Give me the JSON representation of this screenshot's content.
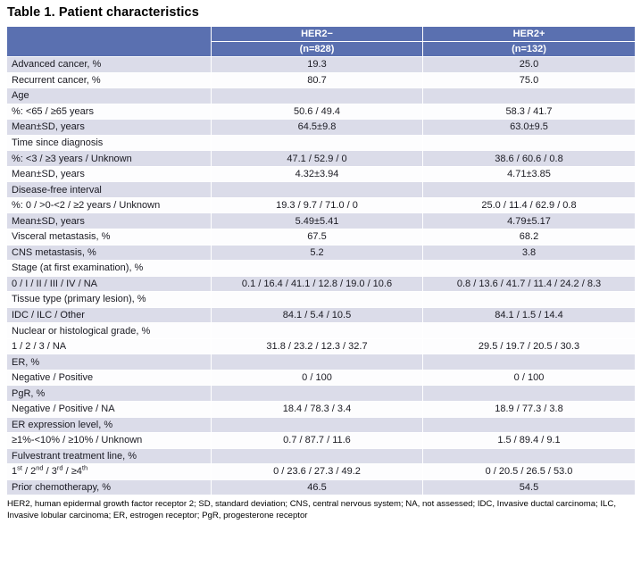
{
  "title": "Table 1. Patient characteristics",
  "table": {
    "columns": [
      {
        "group": "HER2−",
        "n": "(n=828)"
      },
      {
        "group": "HER2+",
        "n": "(n=132)"
      }
    ],
    "rows": [
      {
        "label": "Advanced cancer, %",
        "her2neg": "19.3",
        "her2pos": "25.0",
        "indent": false,
        "shaded": true,
        "sup": false
      },
      {
        "label": "Recurrent cancer, %",
        "her2neg": "80.7",
        "her2pos": "75.0",
        "indent": false,
        "shaded": false,
        "sup": false
      },
      {
        "label": "Age",
        "her2neg": "",
        "her2pos": "",
        "indent": false,
        "shaded": true,
        "sup": false
      },
      {
        "label": "%: <65 / ≥65 years",
        "her2neg": "50.6 / 49.4",
        "her2pos": "58.3 / 41.7",
        "indent": true,
        "shaded": false,
        "sup": false
      },
      {
        "label": "Mean±SD, years",
        "her2neg": "64.5±9.8",
        "her2pos": "63.0±9.5",
        "indent": true,
        "shaded": true,
        "sup": false
      },
      {
        "label": "Time since diagnosis",
        "her2neg": "",
        "her2pos": "",
        "indent": false,
        "shaded": false,
        "sup": false
      },
      {
        "label": "%: <3 / ≥3 years / Unknown",
        "her2neg": "47.1 / 52.9 / 0",
        "her2pos": "38.6 / 60.6 / 0.8",
        "indent": true,
        "shaded": true,
        "sup": false
      },
      {
        "label": "Mean±SD, years",
        "her2neg": "4.32±3.94",
        "her2pos": "4.71±3.85",
        "indent": true,
        "shaded": false,
        "sup": false
      },
      {
        "label": "Disease-free interval",
        "her2neg": "",
        "her2pos": "",
        "indent": false,
        "shaded": true,
        "sup": false
      },
      {
        "label": "%: 0 / >0-<2 / ≥2 years / Unknown",
        "her2neg": "19.3 / 9.7 / 71.0 / 0",
        "her2pos": "25.0 / 11.4 / 62.9 / 0.8",
        "indent": true,
        "shaded": false,
        "sup": false
      },
      {
        "label": "Mean±SD, years",
        "her2neg": "5.49±5.41",
        "her2pos": "4.79±5.17",
        "indent": true,
        "shaded": true,
        "sup": false
      },
      {
        "label": "Visceral metastasis, %",
        "her2neg": "67.5",
        "her2pos": "68.2",
        "indent": false,
        "shaded": false,
        "sup": false
      },
      {
        "label": "CNS metastasis, %",
        "her2neg": "5.2",
        "her2pos": "3.8",
        "indent": false,
        "shaded": true,
        "sup": false
      },
      {
        "label": "Stage (at first examination), %",
        "her2neg": "",
        "her2pos": "",
        "indent": false,
        "shaded": false,
        "sup": false
      },
      {
        "label": "0 / I / II / III / IV / NA",
        "her2neg": "0.1 / 16.4 / 41.1 / 12.8 / 19.0 / 10.6",
        "her2pos": "0.8 / 13.6 / 41.7 / 11.4 / 24.2 / 8.3",
        "indent": true,
        "shaded": true,
        "sup": false
      },
      {
        "label": "Tissue type (primary lesion), %",
        "her2neg": "",
        "her2pos": "",
        "indent": false,
        "shaded": false,
        "sup": false
      },
      {
        "label": "IDC / ILC / Other",
        "her2neg": "84.1 / 5.4 / 10.5",
        "her2pos": "84.1 / 1.5 / 14.4",
        "indent": true,
        "shaded": true,
        "sup": false
      },
      {
        "label": "Nuclear or histological grade, %",
        "her2neg": "",
        "her2pos": "",
        "indent": false,
        "shaded": false,
        "sup": false
      },
      {
        "label": "1 / 2 / 3 / NA",
        "her2neg": "31.8 / 23.2 / 12.3 / 32.7",
        "her2pos": "29.5 / 19.7 / 20.5 / 30.3",
        "indent": true,
        "shaded": false,
        "sup": false
      },
      {
        "label": "ER, %",
        "her2neg": "",
        "her2pos": "",
        "indent": false,
        "shaded": true,
        "sup": false
      },
      {
        "label": "Negative / Positive",
        "her2neg": "0 / 100",
        "her2pos": "0 / 100",
        "indent": true,
        "shaded": false,
        "sup": false
      },
      {
        "label": "PgR, %",
        "her2neg": "",
        "her2pos": "",
        "indent": false,
        "shaded": true,
        "sup": false
      },
      {
        "label": "Negative / Positive / NA",
        "her2neg": "18.4 / 78.3 / 3.4",
        "her2pos": "18.9 / 77.3 / 3.8",
        "indent": true,
        "shaded": false,
        "sup": false
      },
      {
        "label": "ER expression level, %",
        "her2neg": "",
        "her2pos": "",
        "indent": false,
        "shaded": true,
        "sup": false
      },
      {
        "label": "≥1%-<10% / ≥10% / Unknown",
        "her2neg": "0.7 / 87.7 / 11.6",
        "her2pos": "1.5 / 89.4 / 9.1",
        "indent": true,
        "shaded": false,
        "sup": false
      },
      {
        "label": "Fulvestrant treatment line, %",
        "her2neg": "",
        "her2pos": "",
        "indent": false,
        "shaded": true,
        "sup": false
      },
      {
        "label": "1st / 2nd / 3rd / ≥4th",
        "her2neg": "0 / 23.6 / 27.3 / 49.2",
        "her2pos": "0 / 20.5 / 26.5 / 53.0",
        "indent": true,
        "shaded": false,
        "sup": true
      },
      {
        "label": "Prior chemotherapy, %",
        "her2neg": "46.5",
        "her2pos": "54.5",
        "indent": false,
        "shaded": true,
        "sup": false
      }
    ]
  },
  "footnote": "HER2, human epidermal growth factor receptor 2; SD, standard deviation; CNS, central nervous system; NA, not assessed; IDC, Invasive ductal carcinoma; ILC, Invasive lobular carcinoma; ER, estrogen receptor; PgR, progesterone receptor",
  "colors": {
    "header_blue": "#5a70b0",
    "band_lavender": "#dbdce9",
    "band_white": "#fdfdfe",
    "header_text": "#ffffff",
    "body_text": "#1a1a22"
  }
}
